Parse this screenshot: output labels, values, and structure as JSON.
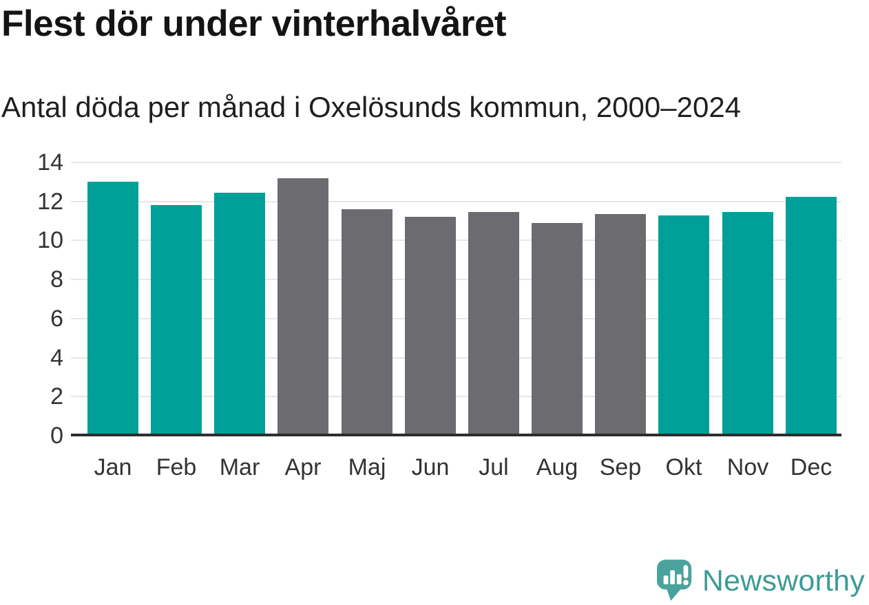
{
  "title": "Flest dör under vinterhalvåret",
  "subtitle": "Antal döda per månad i Oxelösunds kommun, 2000–2024",
  "footer": {
    "brand": "Newsworthy",
    "logo_icon": "newsworthy-speech-bubble-bar-chart-icon"
  },
  "colors": {
    "winter_bar": "#00a098",
    "summer_bar": "#6b6b70",
    "gridline": "#e6e6e6",
    "axis_line": "#2d2d2d",
    "tick_label": "#333333",
    "title_text": "#141414",
    "brand_teal": "#3d9b95",
    "logo_bubble": "#4aa29c"
  },
  "chart_data": {
    "type": "bar",
    "title": "Flest dör under vinterhalvåret",
    "subtitle": "Antal döda per månad i Oxelösunds kommun, 2000–2024",
    "categories": [
      "Jan",
      "Feb",
      "Mar",
      "Apr",
      "Maj",
      "Jun",
      "Jul",
      "Aug",
      "Sep",
      "Okt",
      "Nov",
      "Dec"
    ],
    "values": [
      13.0,
      11.8,
      12.45,
      13.2,
      11.6,
      11.2,
      11.45,
      10.9,
      11.35,
      11.3,
      11.45,
      12.25
    ],
    "bar_colors": [
      "#00a098",
      "#00a098",
      "#00a098",
      "#6b6b70",
      "#6b6b70",
      "#6b6b70",
      "#6b6b70",
      "#6b6b70",
      "#6b6b70",
      "#00a098",
      "#00a098",
      "#00a098"
    ],
    "color_meaning": "teal = winter half-year months (Okt–Mar), grey = summer half-year months (Apr–Sep)",
    "xlabel": "",
    "ylabel": "",
    "ylim": [
      0,
      14
    ],
    "yticks": [
      0,
      2,
      4,
      6,
      8,
      10,
      12,
      14
    ],
    "grid": true,
    "legend": "none"
  }
}
